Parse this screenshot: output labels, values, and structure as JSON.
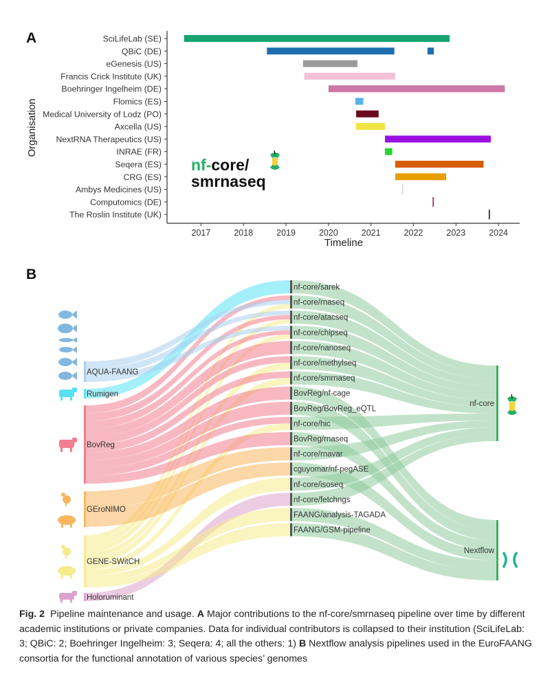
{
  "panel_a": {
    "label": "A",
    "logo_text_nf": "nf-",
    "logo_text_core": "core/",
    "logo_text_pipeline": "smrnaseq",
    "colors": {
      "logo_green": "#24B064",
      "axis": "#333333",
      "grid": "#ffffff"
    },
    "chart_data": {
      "type": "gantt",
      "title": "",
      "xlabel": "Timeline",
      "ylabel": "Organisation",
      "xlim": [
        2016.2,
        2024.5
      ],
      "x_ticks": [
        2017,
        2018,
        2019,
        2020,
        2021,
        2022,
        2023,
        2024
      ],
      "x_tick_labels": [
        "2017",
        "2018",
        "2019",
        "2020",
        "2021",
        "2022",
        "2023",
        "2024"
      ],
      "organisations": [
        {
          "name": "SciLifeLab (SE)",
          "segments": [
            [
              2016.6,
              2022.85
            ]
          ],
          "color": "#16A36F"
        },
        {
          "name": "QBiC (DE)",
          "segments": [
            [
              2018.55,
              2021.55
            ],
            [
              2022.33,
              2022.48
            ]
          ],
          "color": "#1C6EAD"
        },
        {
          "name": "eGenesis (US)",
          "segments": [
            [
              2019.4,
              2020.68
            ]
          ],
          "color": "#9A9A9A"
        },
        {
          "name": "Francis Crick Institute (UK)",
          "segments": [
            [
              2019.43,
              2021.57
            ]
          ],
          "color": "#F4C2D6"
        },
        {
          "name": "Boehringer Ingelheim (DE)",
          "segments": [
            [
              2020.0,
              2024.15
            ]
          ],
          "color": "#CC79A7"
        },
        {
          "name": "Flomics (ES)",
          "segments": [
            [
              2020.63,
              2020.82
            ]
          ],
          "color": "#56B4E9"
        },
        {
          "name": "Medical University of Lodz (PO)",
          "segments": [
            [
              2020.65,
              2021.18
            ]
          ],
          "color": "#6B0A1E"
        },
        {
          "name": "Axcella (US)",
          "segments": [
            [
              2020.65,
              2021.33
            ]
          ],
          "color": "#F0E442"
        },
        {
          "name": "NextRNA Therapeutics (US)",
          "segments": [
            [
              2021.33,
              2023.82
            ]
          ],
          "color": "#9B10E0"
        },
        {
          "name": "INRAE (FR)",
          "segments": [
            [
              2021.33,
              2021.5
            ]
          ],
          "color": "#22D62A"
        },
        {
          "name": "Seqera (ES)",
          "segments": [
            [
              2021.57,
              2023.65
            ]
          ],
          "color": "#D55E00"
        },
        {
          "name": "CRG (ES)",
          "segments": [
            [
              2021.57,
              2022.77
            ]
          ],
          "color": "#E69F00"
        },
        {
          "name": "Ambys Medicines (US)",
          "segments": [
            [
              2021.73,
              2021.76
            ]
          ],
          "color": "#D8D8EE"
        },
        {
          "name": "Computomics (DE)",
          "segments": [
            [
              2022.45,
              2022.48
            ]
          ],
          "color": "#B0306A"
        },
        {
          "name": "The Roslin Institute (UK)",
          "segments": [
            [
              2023.77,
              2023.8
            ]
          ],
          "color": "#333333"
        }
      ]
    }
  },
  "panel_b": {
    "label": "B",
    "chart_data": {
      "type": "sankey",
      "consortia": [
        {
          "name": "AQUA-FAANG",
          "color": "#A9CFEE",
          "icon": "fish-icon"
        },
        {
          "name": "Rumigen",
          "color": "#58E1F5",
          "icon": "cow-icon"
        },
        {
          "name": "BovReg",
          "color": "#F37E8F",
          "icon": "cow-icon"
        },
        {
          "name": "GEroNIMO",
          "color": "#F9B65E",
          "icon": "chicken-pig-icon"
        },
        {
          "name": "GENE-SWitCH",
          "color": "#F6EB8A",
          "icon": "chicken-pig-icon"
        },
        {
          "name": "Holoruminant",
          "color": "#DCA3CC",
          "icon": "cow-icon"
        }
      ],
      "pipelines": [
        "nf-core/sarek",
        "nf-core/rnaseq",
        "nf-core/atacseq",
        "nf-core/chipseq",
        "nf-core/nanoseq",
        "nf-core/methylseq",
        "nf-core/smrnaseq",
        "BovReg/nf-cage",
        "BovReg/BovReg_eQTL",
        "nf-core/hic",
        "BovReg/rnaseq",
        "nf-core/rnavar",
        "cguyomar/nf-pegASE",
        "nf-core/isoseq",
        "nf-core/fetchngs",
        "FAANG/analysis-TAGADA",
        "FAANG/GSM-pipeline"
      ],
      "frameworks": [
        {
          "name": "nf-core",
          "color": "#8FCC9C"
        },
        {
          "name": "Nextflow",
          "color": "#8FCC9C"
        }
      ],
      "links": [
        {
          "source": "Rumigen",
          "target": "nf-core/sarek"
        },
        {
          "source": "BovReg",
          "target": "nf-core/rnaseq"
        },
        {
          "source": "AQUA-FAANG",
          "target": "nf-core/rnaseq"
        },
        {
          "source": "GENE-SWitCH",
          "target": "nf-core/rnaseq"
        },
        {
          "source": "AQUA-FAANG",
          "target": "nf-core/atacseq"
        },
        {
          "source": "BovReg",
          "target": "nf-core/atacseq"
        },
        {
          "source": "GENE-SWitCH",
          "target": "nf-core/atacseq"
        },
        {
          "source": "AQUA-FAANG",
          "target": "nf-core/chipseq"
        },
        {
          "source": "BovReg",
          "target": "nf-core/chipseq"
        },
        {
          "source": "GENE-SWitCH",
          "target": "nf-core/chipseq"
        },
        {
          "source": "BovReg",
          "target": "nf-core/nanoseq"
        },
        {
          "source": "BovReg",
          "target": "nf-core/methylseq"
        },
        {
          "source": "GENE-SWitCH",
          "target": "nf-core/methylseq"
        },
        {
          "source": "BovReg",
          "target": "nf-core/smrnaseq"
        },
        {
          "source": "GENE-SWitCH",
          "target": "nf-core/smrnaseq"
        },
        {
          "source": "BovReg",
          "target": "BovReg/nf-cage"
        },
        {
          "source": "BovReg",
          "target": "BovReg/BovReg_eQTL"
        },
        {
          "source": "BovReg",
          "target": "nf-core/hic"
        },
        {
          "source": "GENE-SWitCH",
          "target": "nf-core/hic"
        },
        {
          "source": "BovReg",
          "target": "BovReg/rnaseq"
        },
        {
          "source": "GEroNIMO",
          "target": "nf-core/rnavar"
        },
        {
          "source": "GEroNIMO",
          "target": "cguyomar/nf-pegASE"
        },
        {
          "source": "GENE-SWitCH",
          "target": "nf-core/isoseq"
        },
        {
          "source": "Holoruminant",
          "target": "nf-core/fetchngs"
        },
        {
          "source": "GENE-SWitCH",
          "target": "FAANG/analysis-TAGADA"
        },
        {
          "source": "GENE-SWitCH",
          "target": "FAANG/GSM-pipeline"
        },
        {
          "source": "nf-core/sarek",
          "target": "nf-core"
        },
        {
          "source": "nf-core/rnaseq",
          "target": "nf-core"
        },
        {
          "source": "nf-core/atacseq",
          "target": "nf-core"
        },
        {
          "source": "nf-core/chipseq",
          "target": "nf-core"
        },
        {
          "source": "nf-core/nanoseq",
          "target": "nf-core"
        },
        {
          "source": "nf-core/methylseq",
          "target": "nf-core"
        },
        {
          "source": "nf-core/smrnaseq",
          "target": "nf-core"
        },
        {
          "source": "BovReg/nf-cage",
          "target": "Nextflow"
        },
        {
          "source": "BovReg/BovReg_eQTL",
          "target": "Nextflow"
        },
        {
          "source": "nf-core/hic",
          "target": "nf-core"
        },
        {
          "source": "BovReg/rnaseq",
          "target": "Nextflow"
        },
        {
          "source": "nf-core/rnavar",
          "target": "nf-core"
        },
        {
          "source": "cguyomar/nf-pegASE",
          "target": "Nextflow"
        },
        {
          "source": "nf-core/isoseq",
          "target": "nf-core"
        },
        {
          "source": "nf-core/fetchngs",
          "target": "nf-core"
        },
        {
          "source": "FAANG/analysis-TAGADA",
          "target": "Nextflow"
        },
        {
          "source": "FAANG/GSM-pipeline",
          "target": "Nextflow"
        }
      ]
    }
  },
  "caption": {
    "fig_label": "Fig. 2",
    "title": "Pipeline maintenance and usage.",
    "a_label": "A",
    "a_text": "Major contributions to the nf-core/smrnaseq pipeline over time by different academic institutions or private companies. Data for individual contributors is collapsed to their institution (SciLifeLab: 3; QBiC: 2; Boehringer Ingelheim: 3; Seqera: 4; all the others: 1)",
    "b_label": "B",
    "b_text": "Nextflow analysis pipelines used in the EuroFAANG consortia for the functional annotation of various species’ genomes"
  }
}
